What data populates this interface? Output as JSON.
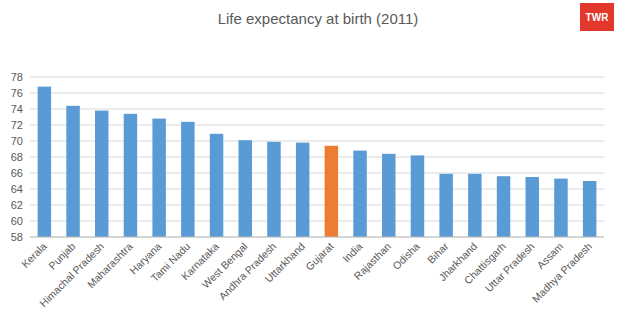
{
  "chart_data": {
    "type": "bar",
    "title": "Life expectancy at birth (2011)",
    "annotations": [
      "TWR"
    ],
    "categories": [
      "Kerala",
      "Punjab",
      "Himachal Pradesh",
      "Maharashtra",
      "Haryana",
      "Tami Nadu",
      "Karnataka",
      "West Bengal",
      "Andhra Pradesh",
      "Uttarkhand",
      "Gujarat",
      "India",
      "Rajasthan",
      "Odisha",
      "Bihar",
      "Jharkhand",
      "Chattisgarh",
      "Uttar Pradesh",
      "Assam",
      "Madhya Pradesh"
    ],
    "values": [
      76.8,
      74.4,
      73.8,
      73.4,
      72.8,
      72.4,
      70.9,
      70.1,
      69.9,
      69.8,
      69.4,
      68.8,
      68.4,
      68.2,
      65.9,
      65.9,
      65.6,
      65.5,
      65.3,
      65.0
    ],
    "colors": [
      "#5b9bd5",
      "#5b9bd5",
      "#5b9bd5",
      "#5b9bd5",
      "#5b9bd5",
      "#5b9bd5",
      "#5b9bd5",
      "#5b9bd5",
      "#5b9bd5",
      "#5b9bd5",
      "#ed7d31",
      "#5b9bd5",
      "#5b9bd5",
      "#5b9bd5",
      "#5b9bd5",
      "#5b9bd5",
      "#5b9bd5",
      "#5b9bd5",
      "#5b9bd5",
      "#5b9bd5"
    ],
    "ylim": [
      58,
      78
    ],
    "yticks": [
      58,
      60,
      62,
      64,
      66,
      68,
      70,
      72,
      74,
      76,
      78
    ],
    "grid": true
  }
}
